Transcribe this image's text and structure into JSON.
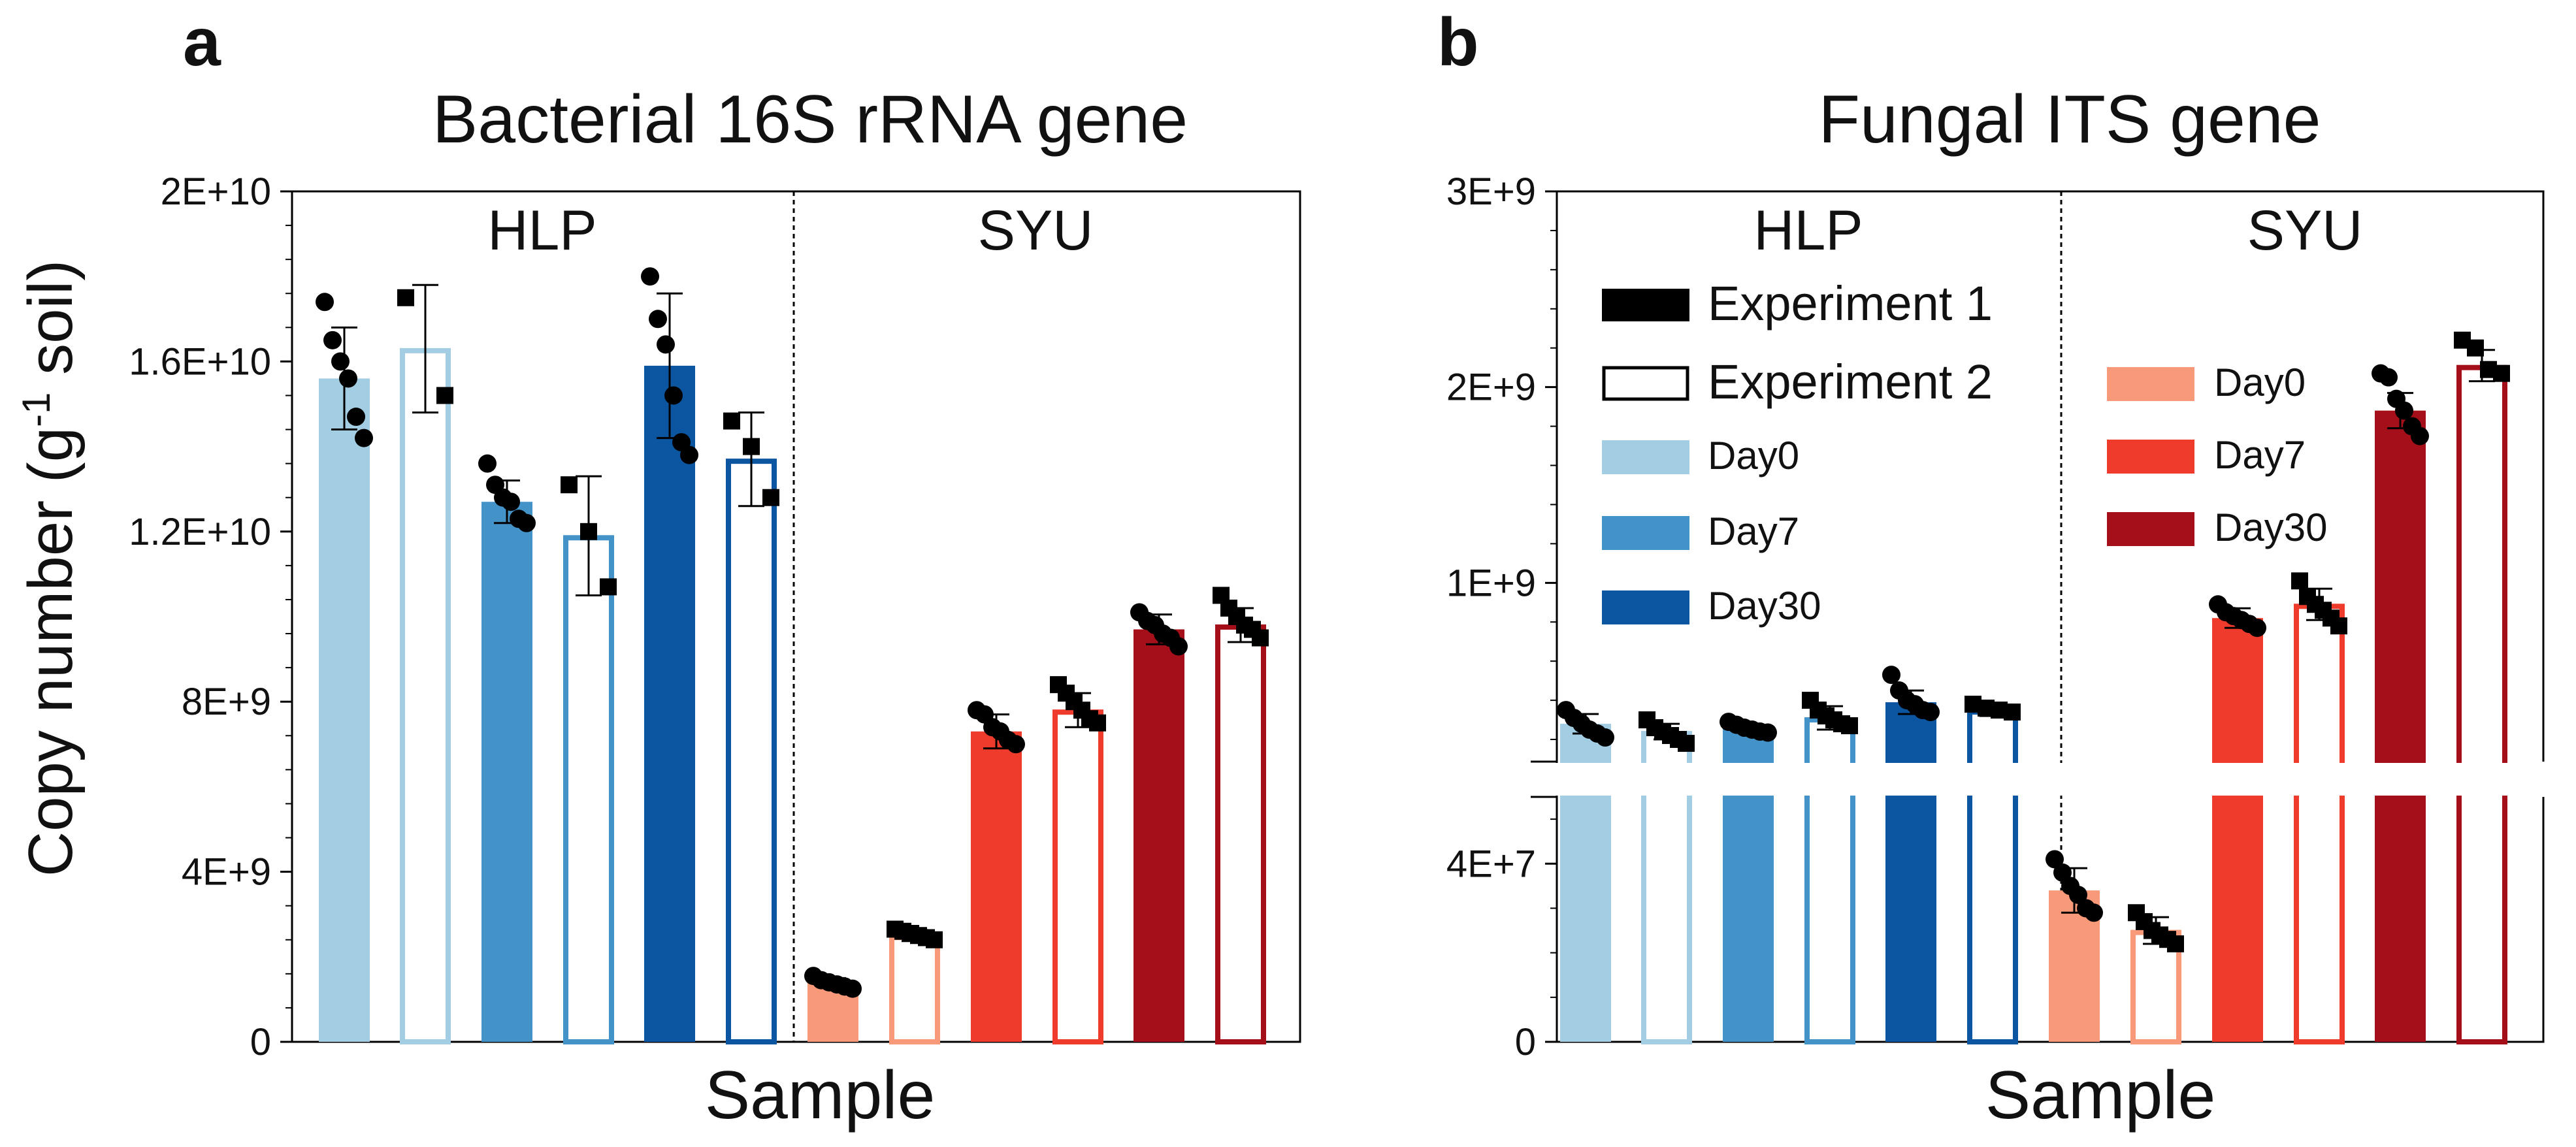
{
  "panel_a": {
    "letter": "a",
    "title": "Bacterial 16S rRNA gene"
  },
  "panel_b": {
    "letter": "b",
    "title": "Fungal ITS gene"
  },
  "y_axis_label_main": "Copy number (g",
  "y_axis_label_sup": "-1",
  "y_axis_label_end": " soil)",
  "x_axis_label": "Sample",
  "legend": {
    "experiment_1": "Experiment 1",
    "experiment_2": "Experiment 2",
    "hlp_day0": "Day0",
    "hlp_day7": "Day7",
    "hlp_day30": "Day30",
    "syu_day0": "Day0",
    "syu_day7": "Day7",
    "syu_day30": "Day30"
  },
  "colors": {
    "hlp_day0": "#a3cde3",
    "hlp_day7": "#4393c9",
    "hlp_day30": "#0c55a0",
    "syu_day0": "#f89a7a",
    "syu_day7": "#ef3b2c",
    "syu_day30": "#a50f1a"
  },
  "chart_data": [
    {
      "type": "bar",
      "title": "Bacterial 16S rRNA gene",
      "xlabel": "Sample",
      "ylabel": "Copy number (g-1 soil)",
      "ylim": [
        0,
        20000000000
      ],
      "yticks": [
        "0",
        "4E+9",
        "8E+9",
        "1.2E+10",
        "1.6E+10",
        "2E+10"
      ],
      "groups": [
        "HLP",
        "SYU"
      ],
      "legend": false,
      "categories": [
        "HLP Day0",
        "HLP Day7",
        "HLP Day30",
        "SYU Day0",
        "SYU Day7",
        "SYU Day30"
      ],
      "series": [
        {
          "name": "Experiment 1",
          "values": [
            15600000000,
            12700000000,
            15900000000,
            1400000000,
            7300000000,
            9700000000
          ],
          "errors": [
            1200000000,
            500000000,
            1700000000,
            100000000,
            400000000,
            350000000
          ],
          "points": [
            [
              17400000000,
              16500000000,
              16000000000,
              15600000000,
              14700000000,
              14200000000
            ],
            [
              13600000000,
              13100000000,
              12800000000,
              12700000000,
              12300000000,
              12200000000
            ],
            [
              18000000000,
              17000000000,
              16400000000,
              15200000000,
              14100000000,
              13800000000
            ],
            [
              1550000000,
              1450000000,
              1400000000,
              1350000000,
              1300000000,
              1250000000
            ],
            [
              7800000000,
              7700000000,
              7400000000,
              7300000000,
              7100000000,
              7000000000
            ],
            [
              10100000000,
              9900000000,
              9800000000,
              9600000000,
              9500000000,
              9300000000
            ]
          ]
        },
        {
          "name": "Experiment 2",
          "values": [
            16300000000,
            11900000000,
            13700000000,
            2500000000,
            7800000000,
            9800000000
          ],
          "errors": [
            1500000000,
            1400000000,
            1100000000,
            130000000,
            400000000,
            400000000
          ],
          "points": [
            [
              17500000000,
              15200000000
            ],
            [
              13100000000,
              12000000000,
              10700000000
            ],
            [
              14600000000,
              14000000000,
              12800000000
            ],
            [
              2650000000,
              2600000000,
              2550000000,
              2500000000,
              2450000000,
              2400000000
            ],
            [
              8400000000,
              8200000000,
              8000000000,
              7800000000,
              7600000000,
              7500000000
            ],
            [
              10500000000,
              10200000000,
              10000000000,
              9800000000,
              9700000000,
              9500000000
            ]
          ]
        }
      ]
    },
    {
      "type": "bar",
      "title": "Fungal ITS gene",
      "xlabel": "Sample",
      "ylabel": "Copy number (g-1 soil)",
      "axis_break": true,
      "lower_ylim": [
        0,
        55000000
      ],
      "upper_ylim": [
        90000000,
        3000000000
      ],
      "yticks": [
        "0",
        "4E+7",
        "1E+9",
        "2E+9",
        "3E+9"
      ],
      "groups": [
        "HLP",
        "SYU"
      ],
      "legend": "top-left",
      "categories": [
        "HLP Day0",
        "HLP Day7",
        "HLP Day30",
        "SYU Day0",
        "SYU Day7",
        "SYU Day30"
      ],
      "series": [
        {
          "name": "Experiment 1",
          "values": [
            280000000,
            260000000,
            390000000,
            34000000,
            820000000,
            1880000000
          ],
          "errors": [
            50000000,
            20000000,
            60000000,
            5000000,
            50000000,
            90000000
          ],
          "points": [
            [
              350000000,
              310000000,
              280000000,
              250000000,
              230000000,
              210000000
            ],
            [
              290000000,
              275000000,
              260000000,
              250000000,
              240000000,
              235000000
            ],
            [
              530000000,
              450000000,
              400000000,
              380000000,
              350000000,
              340000000
            ],
            [
              41000000,
              38000000,
              35000000,
              33000000,
              30000000,
              29000000
            ],
            [
              890000000,
              850000000,
              830000000,
              810000000,
              790000000,
              770000000
            ],
            [
              2070000000,
              2050000000,
              1940000000,
              1880000000,
              1800000000,
              1750000000
            ]
          ]
        },
        {
          "name": "Experiment 2",
          "values": [
            240000000,
            310000000,
            350000000,
            25000000,
            890000000,
            2110000000
          ],
          "errors": [
            40000000,
            60000000,
            30000000,
            3000000,
            80000000,
            80000000
          ],
          "points": [
            [
              300000000,
              260000000,
              240000000,
              220000000,
              200000000,
              180000000
            ],
            [
              400000000,
              350000000,
              320000000,
              300000000,
              280000000,
              270000000
            ],
            [
              380000000,
              360000000,
              350000000,
              340000000
            ],
            [
              29000000,
              27000000,
              25000000,
              24000000,
              23000000,
              22000000
            ],
            [
              1010000000,
              930000000,
              890000000,
              860000000,
              820000000,
              780000000
            ],
            [
              2240000000,
              2200000000,
              2090000000,
              2070000000
            ]
          ]
        }
      ]
    }
  ]
}
